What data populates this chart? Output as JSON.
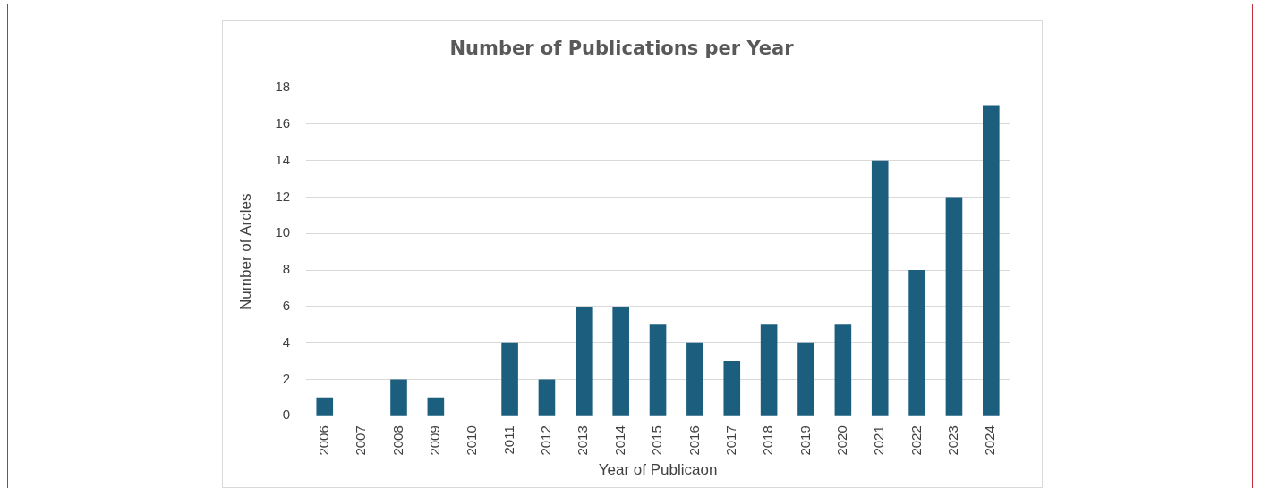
{
  "chart_data": {
    "type": "bar",
    "title": "Number of Publications per Year",
    "xlabel": "Year of Publicaon",
    "ylabel": "Number of Arcles",
    "categories": [
      "2006",
      "2007",
      "2008",
      "2009",
      "2010",
      "2011",
      "2012",
      "2013",
      "2014",
      "2015",
      "2016",
      "2017",
      "2018",
      "2019",
      "2020",
      "2021",
      "2022",
      "2023",
      "2024"
    ],
    "values": [
      1,
      0,
      2,
      1,
      0,
      4,
      2,
      6,
      6,
      5,
      4,
      3,
      5,
      4,
      5,
      14,
      8,
      12,
      17
    ],
    "color": "#1b5e7e",
    "ylim": [
      0,
      18
    ],
    "yticks": [
      0,
      2,
      4,
      6,
      8,
      10,
      12,
      14,
      16,
      18
    ],
    "grid": "y",
    "legend": false
  }
}
